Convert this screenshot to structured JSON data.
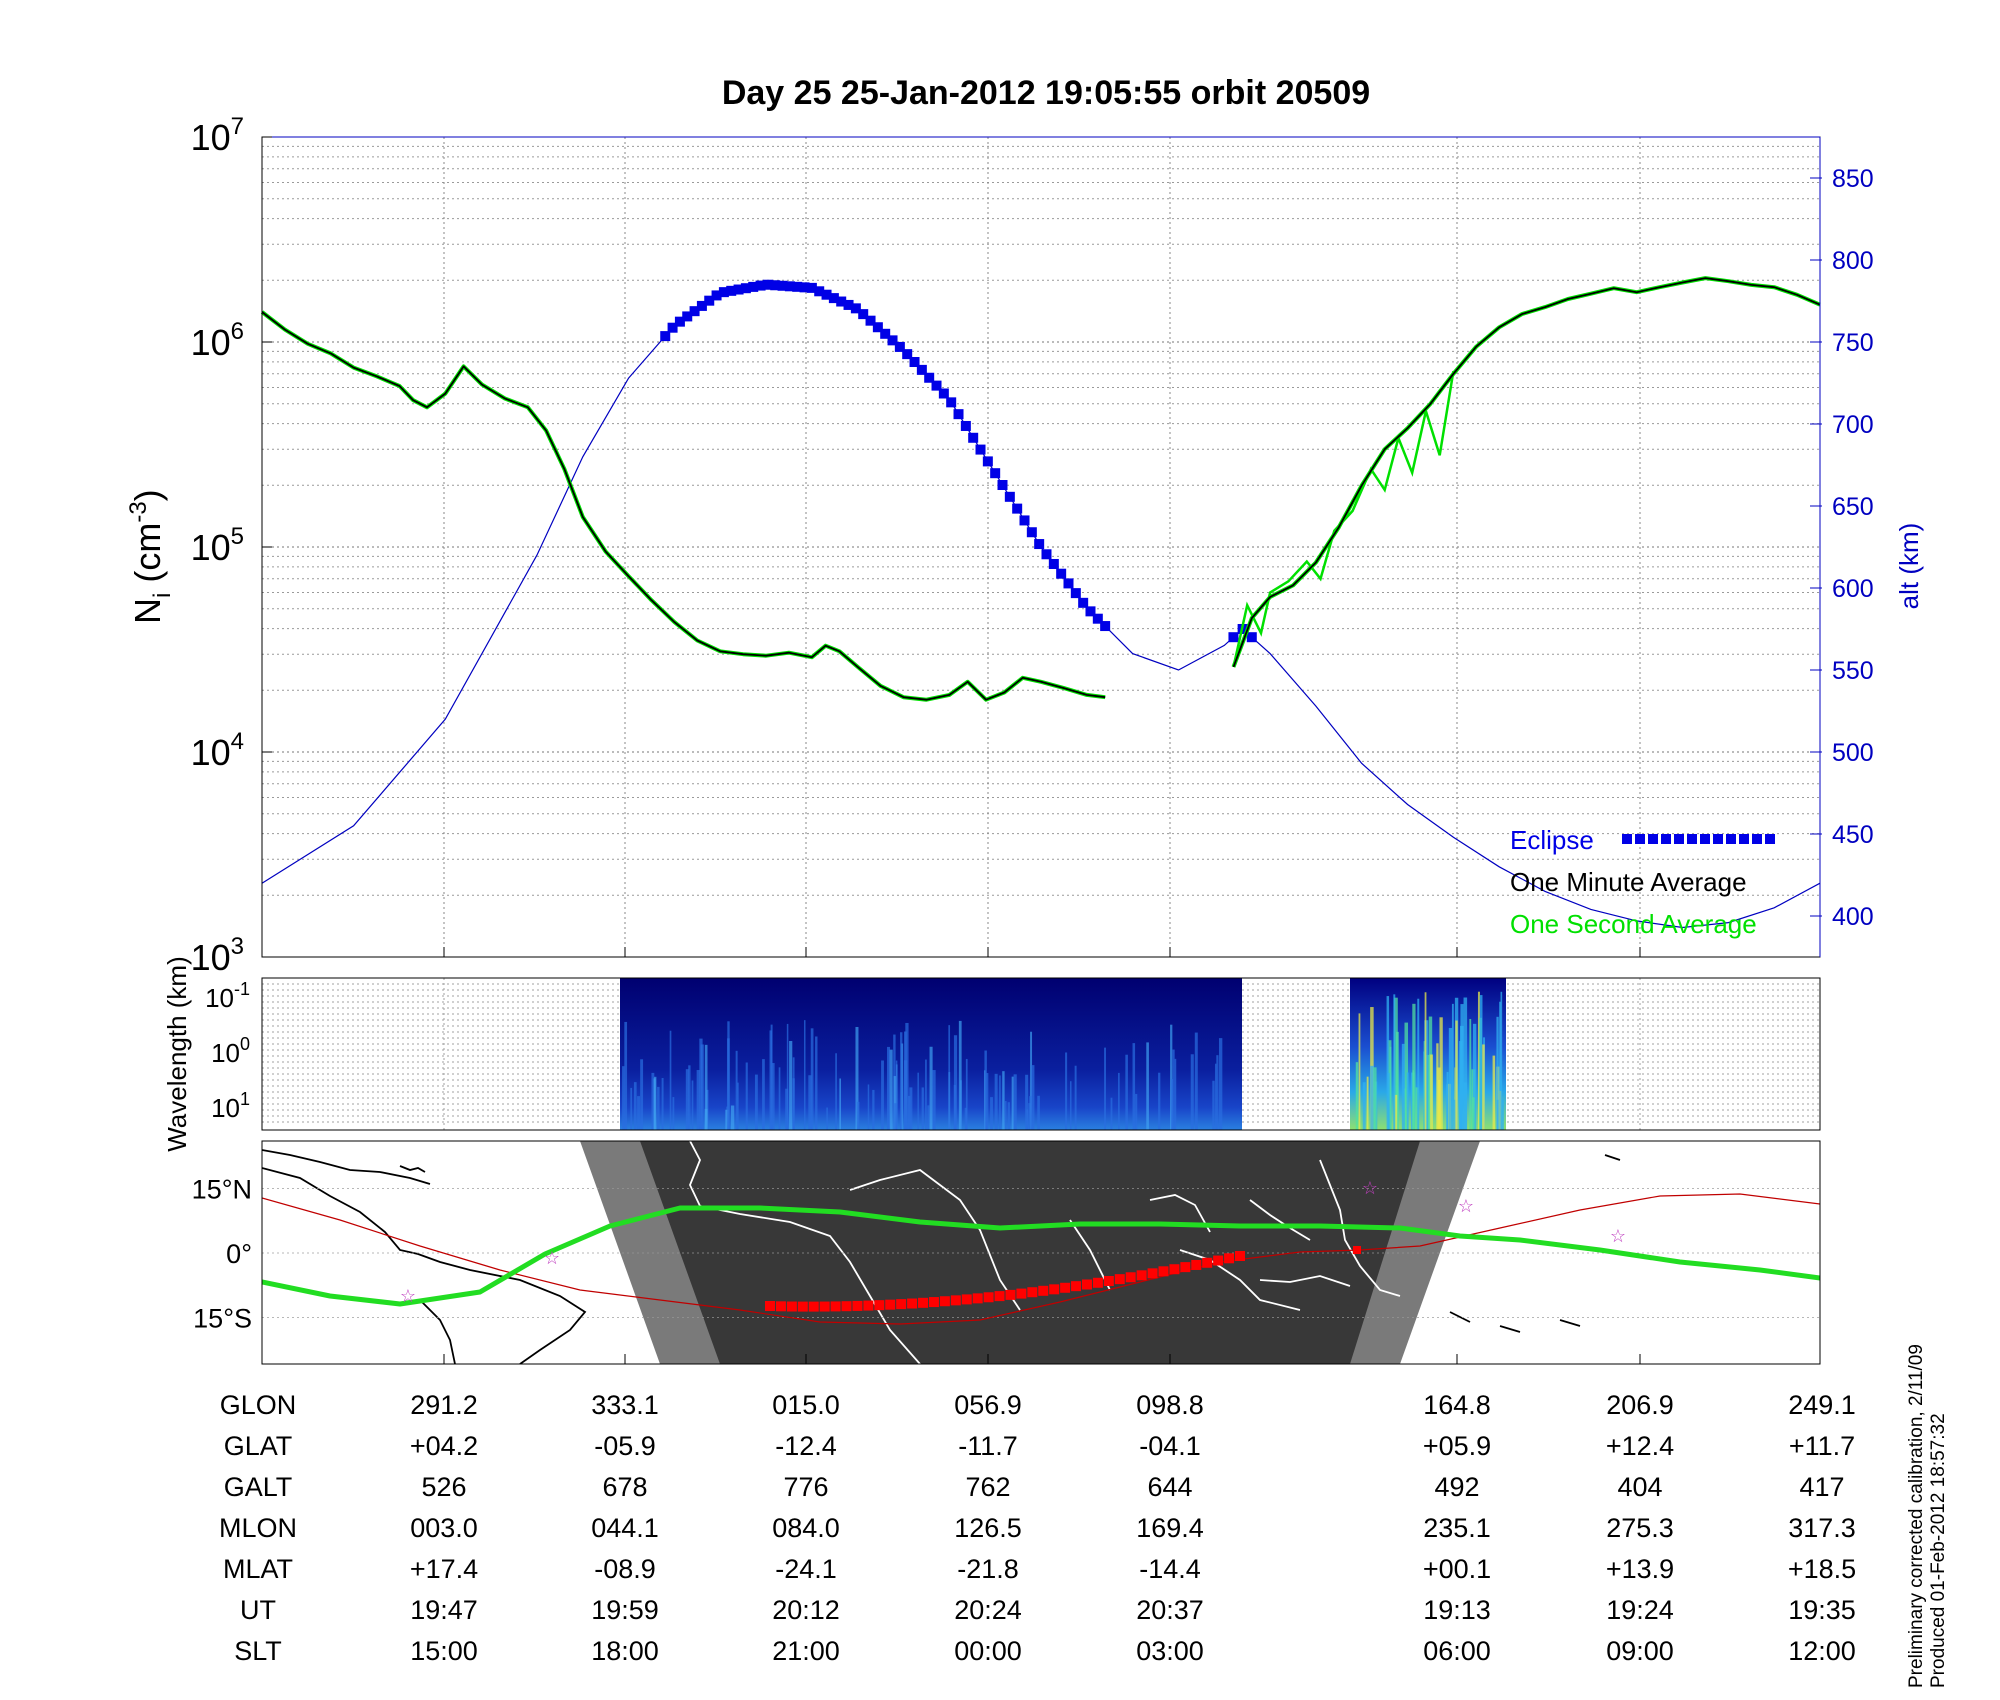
{
  "title": "Day 25  25-Jan-2012 19:05:55   orbit 20509",
  "top_panel": {
    "ylabel_main": "N",
    "ylabel_sub": "i",
    "ylabel_unit_open": " (cm",
    "ylabel_unit_sup": "-3",
    "ylabel_unit_close": ")",
    "right_ylabel": "alt (km)",
    "left_ticks": [
      {
        "base": "10",
        "exp": "3",
        "value": 1000
      },
      {
        "base": "10",
        "exp": "4",
        "value": 10000
      },
      {
        "base": "10",
        "exp": "5",
        "value": 100000
      },
      {
        "base": "10",
        "exp": "6",
        "value": 1000000
      },
      {
        "base": "10",
        "exp": "7",
        "value": 10000000
      }
    ],
    "right_ticks": [
      "400",
      "450",
      "500",
      "550",
      "600",
      "650",
      "700",
      "750",
      "800",
      "850"
    ],
    "legend": {
      "eclipse": "Eclipse",
      "minute": "One Minute Average",
      "second": "One Second Average"
    }
  },
  "spectrogram_panel": {
    "ylabel": "Wavelength (km)",
    "ticks": [
      {
        "base": "10",
        "exp": "-1"
      },
      {
        "base": "10",
        "exp": "0"
      },
      {
        "base": "10",
        "exp": "1"
      }
    ]
  },
  "map_panel": {
    "lat_ticks": [
      "15°N",
      "0°",
      "15°S"
    ]
  },
  "table": {
    "rows": [
      {
        "label": "GLON",
        "values": [
          "291.2",
          "333.1",
          "015.0",
          "056.9",
          "098.8",
          "164.8",
          "206.9",
          "249.1"
        ]
      },
      {
        "label": "GLAT",
        "values": [
          "+04.2",
          "-05.9",
          "-12.4",
          "-11.7",
          "-04.1",
          "+05.9",
          "+12.4",
          "+11.7"
        ]
      },
      {
        "label": "GALT",
        "values": [
          "526",
          "678",
          "776",
          "762",
          "644",
          "492",
          "404",
          "417"
        ]
      },
      {
        "label": "MLON",
        "values": [
          "003.0",
          "044.1",
          "084.0",
          "126.5",
          "169.4",
          "235.1",
          "275.3",
          "317.3"
        ]
      },
      {
        "label": "MLAT",
        "values": [
          "+17.4",
          "-08.9",
          "-24.1",
          "-21.8",
          "-14.4",
          "+00.1",
          "+13.9",
          "+18.5"
        ]
      },
      {
        "label": "UT",
        "values": [
          "19:47",
          "19:59",
          "20:12",
          "20:24",
          "20:37",
          "19:13",
          "19:24",
          "19:35"
        ]
      },
      {
        "label": "SLT",
        "values": [
          "15:00",
          "18:00",
          "21:00",
          "00:00",
          "03:00",
          "06:00",
          "09:00",
          "12:00"
        ]
      }
    ]
  },
  "footnote": {
    "line1": "Preliminary corrected calibration, 2/11/09",
    "line2": "Produced 01-Feb-2012 18:57:32"
  },
  "colors": {
    "minute": "#000000",
    "second": "#00e000",
    "altitude": "#0000c0",
    "eclipse": "#0000e6",
    "track": "#22dd22",
    "eclipse_track": "#ff0000",
    "orbit_ref": "#c00000",
    "night": "#383838",
    "twilight": "#7a7a7a"
  },
  "chart_data": {
    "type": "line",
    "x_unit": "SLT (hours, continuing past 24)",
    "ylim": [
      1000,
      10000000
    ],
    "y_scale": "log",
    "y2lim": [
      375,
      875
    ],
    "grid": true,
    "legend_position": "bottom-right",
    "series": [
      {
        "name": "One Minute Average",
        "segments": [
          [
            [
              12.0,
              1400000
            ],
            [
              12.5,
              1150000
            ],
            [
              13.0,
              980000
            ],
            [
              13.5,
              880000
            ],
            [
              14.0,
              750000
            ],
            [
              14.5,
              680000
            ],
            [
              15.0,
              610000
            ],
            [
              15.3,
              520000
            ],
            [
              15.6,
              480000
            ],
            [
              16.0,
              560000
            ],
            [
              16.4,
              760000
            ],
            [
              16.8,
              620000
            ],
            [
              17.3,
              530000
            ],
            [
              17.8,
              480000
            ],
            [
              18.2,
              370000
            ],
            [
              18.6,
              240000
            ],
            [
              19.0,
              140000
            ],
            [
              19.5,
              95000
            ],
            [
              20.0,
              72000
            ],
            [
              20.5,
              55000
            ],
            [
              21.0,
              43000
            ],
            [
              21.5,
              35000
            ],
            [
              22.0,
              31000
            ],
            [
              22.5,
              30000
            ],
            [
              23.0,
              29500
            ],
            [
              23.5,
              30500
            ],
            [
              24.0,
              29000
            ],
            [
              24.3,
              33000
            ],
            [
              24.6,
              31000
            ],
            [
              25.0,
              26000
            ],
            [
              25.5,
              21000
            ],
            [
              26.0,
              18500
            ],
            [
              26.5,
              18000
            ],
            [
              27.0,
              19000
            ],
            [
              27.4,
              22000
            ],
            [
              27.8,
              18000
            ],
            [
              28.2,
              19500
            ],
            [
              28.6,
              23000
            ],
            [
              29.0,
              22000
            ],
            [
              29.5,
              20500
            ],
            [
              30.0,
              19000
            ],
            [
              30.4,
              18500
            ]
          ],
          [
            [
              33.2,
              26000
            ],
            [
              33.6,
              45000
            ],
            [
              34.0,
              57000
            ],
            [
              34.5,
              65000
            ],
            [
              35.0,
              84000
            ],
            [
              35.5,
              125000
            ],
            [
              36.0,
              200000
            ],
            [
              36.5,
              300000
            ],
            [
              37.0,
              380000
            ],
            [
              37.5,
              500000
            ],
            [
              38.0,
              700000
            ],
            [
              38.5,
              950000
            ],
            [
              39.0,
              1180000
            ],
            [
              39.5,
              1370000
            ],
            [
              40.0,
              1480000
            ],
            [
              40.5,
              1620000
            ],
            [
              41.0,
              1720000
            ],
            [
              41.5,
              1830000
            ],
            [
              42.0,
              1750000
            ],
            [
              42.5,
              1850000
            ],
            [
              43.0,
              1950000
            ],
            [
              43.5,
              2050000
            ],
            [
              44.0,
              1980000
            ],
            [
              44.5,
              1900000
            ],
            [
              45.0,
              1850000
            ],
            [
              45.5,
              1700000
            ],
            [
              46.0,
              1520000
            ]
          ]
        ]
      },
      {
        "name": "One Second Average",
        "segments": [
          [
            [
              33.2,
              26000
            ],
            [
              33.5,
              52000
            ],
            [
              33.8,
              38000
            ],
            [
              34.0,
              60000
            ],
            [
              34.4,
              68000
            ],
            [
              34.8,
              85000
            ],
            [
              35.1,
              70000
            ],
            [
              35.4,
              120000
            ],
            [
              35.8,
              150000
            ],
            [
              36.2,
              240000
            ],
            [
              36.5,
              190000
            ],
            [
              36.8,
              340000
            ],
            [
              37.1,
              230000
            ],
            [
              37.4,
              460000
            ],
            [
              37.7,
              280000
            ],
            [
              38.0,
              720000
            ]
          ]
        ]
      },
      {
        "name": "alt (km)",
        "axis": "right",
        "points": [
          [
            12.0,
            420
          ],
          [
            14.0,
            455
          ],
          [
            16.0,
            520
          ],
          [
            18.0,
            620
          ],
          [
            19.0,
            680
          ],
          [
            20.0,
            728
          ],
          [
            21.0,
            760
          ],
          [
            22.0,
            780
          ],
          [
            23.0,
            785
          ],
          [
            24.0,
            783
          ],
          [
            25.0,
            770
          ],
          [
            26.0,
            745
          ],
          [
            27.0,
            715
          ],
          [
            28.0,
            670
          ],
          [
            29.0,
            625
          ],
          [
            30.0,
            588
          ],
          [
            31.0,
            560
          ],
          [
            32.0,
            550
          ],
          [
            33.0,
            565
          ],
          [
            33.4,
            575
          ],
          [
            34.0,
            560
          ],
          [
            35.0,
            528
          ],
          [
            36.0,
            493
          ],
          [
            37.0,
            468
          ],
          [
            38.0,
            448
          ],
          [
            39.0,
            430
          ],
          [
            40.0,
            415
          ],
          [
            41.0,
            404
          ],
          [
            42.0,
            397
          ],
          [
            43.0,
            393
          ],
          [
            44.0,
            396
          ],
          [
            45.0,
            405
          ],
          [
            46.0,
            420
          ]
        ]
      },
      {
        "name": "Eclipse",
        "axis": "right",
        "x_range": [
          20.8,
          30.4
        ],
        "x_range_2": [
          33.2,
          33.6
        ]
      }
    ]
  }
}
